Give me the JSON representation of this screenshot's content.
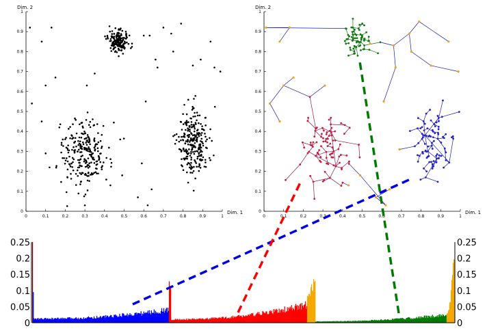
{
  "chart_data": [
    {
      "type": "scatter",
      "panel": "left",
      "xlabel": "Dim. 1",
      "ylabel": "Dim. 2",
      "xlim": [
        0,
        1
      ],
      "ylim": [
        0,
        1
      ],
      "xticks": [
        "0",
        "0.1",
        "0.2",
        "0.3",
        "0.4",
        "0.5",
        "0.6",
        "0.7",
        "0.8",
        "0.9",
        "1"
      ],
      "yticks": [
        "0",
        "0.1",
        "0.2",
        "0.3",
        "0.4",
        "0.5",
        "0.6",
        "0.7",
        "0.8",
        "0.9",
        "1"
      ],
      "marker_color": "#000000",
      "clusters": [
        {
          "center": [
            0.47,
            0.85
          ],
          "spread": [
            0.025,
            0.025
          ],
          "count": 170
        },
        {
          "center": [
            0.3,
            0.29
          ],
          "spread": [
            0.06,
            0.08
          ],
          "count": 260
        },
        {
          "center": [
            0.85,
            0.34
          ],
          "spread": [
            0.04,
            0.09
          ],
          "count": 260
        }
      ],
      "outliers": [
        [
          0.02,
          0.92
        ],
        [
          0.08,
          0.85
        ],
        [
          0.13,
          0.92
        ],
        [
          0.1,
          0.63
        ],
        [
          0.15,
          0.67
        ],
        [
          0.03,
          0.54
        ],
        [
          0.08,
          0.45
        ],
        [
          0.17,
          0.42
        ],
        [
          0.31,
          0.63
        ],
        [
          0.35,
          0.69
        ],
        [
          0.54,
          0.84
        ],
        [
          0.6,
          0.88
        ],
        [
          0.63,
          0.88
        ],
        [
          0.7,
          0.92
        ],
        [
          0.74,
          0.89
        ],
        [
          0.79,
          0.94
        ],
        [
          0.94,
          0.85
        ],
        [
          0.66,
          0.76
        ],
        [
          0.67,
          0.72
        ],
        [
          0.75,
          0.8
        ],
        [
          0.85,
          0.73
        ],
        [
          0.89,
          0.76
        ],
        [
          0.96,
          0.72
        ],
        [
          0.99,
          0.7
        ],
        [
          0.61,
          0.55
        ],
        [
          0.48,
          0.36
        ],
        [
          0.59,
          0.24
        ],
        [
          0.64,
          0.11
        ],
        [
          0.57,
          0.07
        ],
        [
          0.62,
          0.03
        ],
        [
          0.3,
          0.03
        ],
        [
          0.1,
          0.29
        ],
        [
          0.12,
          0.22
        ],
        [
          0.49,
          0.18
        ],
        [
          0.43,
          0.13
        ]
      ]
    },
    {
      "type": "network",
      "panel": "right",
      "xlabel": "Dim. 1",
      "ylabel": "Dim. 2",
      "xlim": [
        0,
        1
      ],
      "ylim": [
        0,
        1
      ],
      "xticks": [
        "0",
        "0.1",
        "0.2",
        "0.3",
        "0.4",
        "0.5",
        "0.6",
        "0.7",
        "0.8",
        "0.9",
        "1"
      ],
      "yticks": [
        "0",
        "0.1",
        "0.2",
        "0.3",
        "0.4",
        "0.5",
        "0.6",
        "0.7",
        "0.8",
        "0.9",
        "1"
      ],
      "edge_color": "#1a1aa8",
      "clusters": [
        {
          "center": [
            0.47,
            0.86
          ],
          "spread": [
            0.035,
            0.035
          ],
          "count": 70,
          "color": "#0e7a0e"
        },
        {
          "center": [
            0.32,
            0.31
          ],
          "spread": [
            0.07,
            0.09
          ],
          "count": 90,
          "color": "#cc1a3a"
        },
        {
          "center": [
            0.86,
            0.33
          ],
          "spread": [
            0.045,
            0.09
          ],
          "count": 90,
          "color": "#2222cc"
        }
      ],
      "outliers": [
        [
          0.01,
          0.92
        ],
        [
          0.13,
          0.92
        ],
        [
          0.08,
          0.85
        ],
        [
          0.66,
          0.83
        ],
        [
          0.74,
          0.89
        ],
        [
          0.79,
          0.95
        ],
        [
          0.94,
          0.85
        ],
        [
          0.67,
          0.72
        ],
        [
          0.75,
          0.8
        ],
        [
          0.85,
          0.73
        ],
        [
          0.99,
          0.7
        ],
        [
          0.1,
          0.63
        ],
        [
          0.15,
          0.67
        ],
        [
          0.03,
          0.54
        ],
        [
          0.08,
          0.45
        ],
        [
          0.31,
          0.63
        ],
        [
          0.61,
          0.55
        ],
        [
          0.49,
          0.18
        ],
        [
          0.43,
          0.13
        ],
        [
          0.62,
          0.03
        ],
        [
          0.57,
          0.07
        ],
        [
          0.64,
          0.11
        ],
        [
          0.69,
          0.31
        ],
        [
          0.54,
          0.84
        ]
      ],
      "outlier_color": "#f0a020"
    },
    {
      "type": "bar",
      "panel": "bottom",
      "ylim": [
        0,
        0.25
      ],
      "yticks": [
        "0",
        "0.05",
        "0.1",
        "0.15",
        "0.2",
        "0.25"
      ],
      "xlim": [
        0,
        600
      ],
      "segments": [
        {
          "name": "blue",
          "color": "#0000ff",
          "from": 0,
          "to": 198,
          "start_value": 0.012,
          "end_value": 0.04
        },
        {
          "name": "spike",
          "color": "#ff0000",
          "from": 198,
          "to": 201,
          "start_value": 0.11,
          "end_value": 0.11
        },
        {
          "name": "red",
          "color": "#ff0000",
          "from": 201,
          "to": 398,
          "start_value": 0.01,
          "end_value": 0.055
        },
        {
          "name": "red-orange tail",
          "color": "#f5a800",
          "from": 398,
          "to": 410,
          "start_value": 0.08,
          "end_value": 0.15
        },
        {
          "name": "green",
          "color": "#007a00",
          "from": 410,
          "to": 600,
          "start_value": 0.004,
          "end_value": 0.025
        },
        {
          "name": "green-orange tail",
          "color": "#f5a800",
          "from": 600,
          "to": 612,
          "start_value": 0.03,
          "end_value": 0.24
        }
      ],
      "left_edge_spikes": [
        {
          "value": 0.25,
          "color": "#7a0000"
        },
        {
          "value": 0.095,
          "color": "#0000ff"
        }
      ]
    }
  ],
  "connectors": [
    {
      "color": "#0000e6",
      "label": "blue"
    },
    {
      "color": "#ff0000",
      "label": "red"
    },
    {
      "color": "#007a00",
      "label": "green"
    }
  ]
}
